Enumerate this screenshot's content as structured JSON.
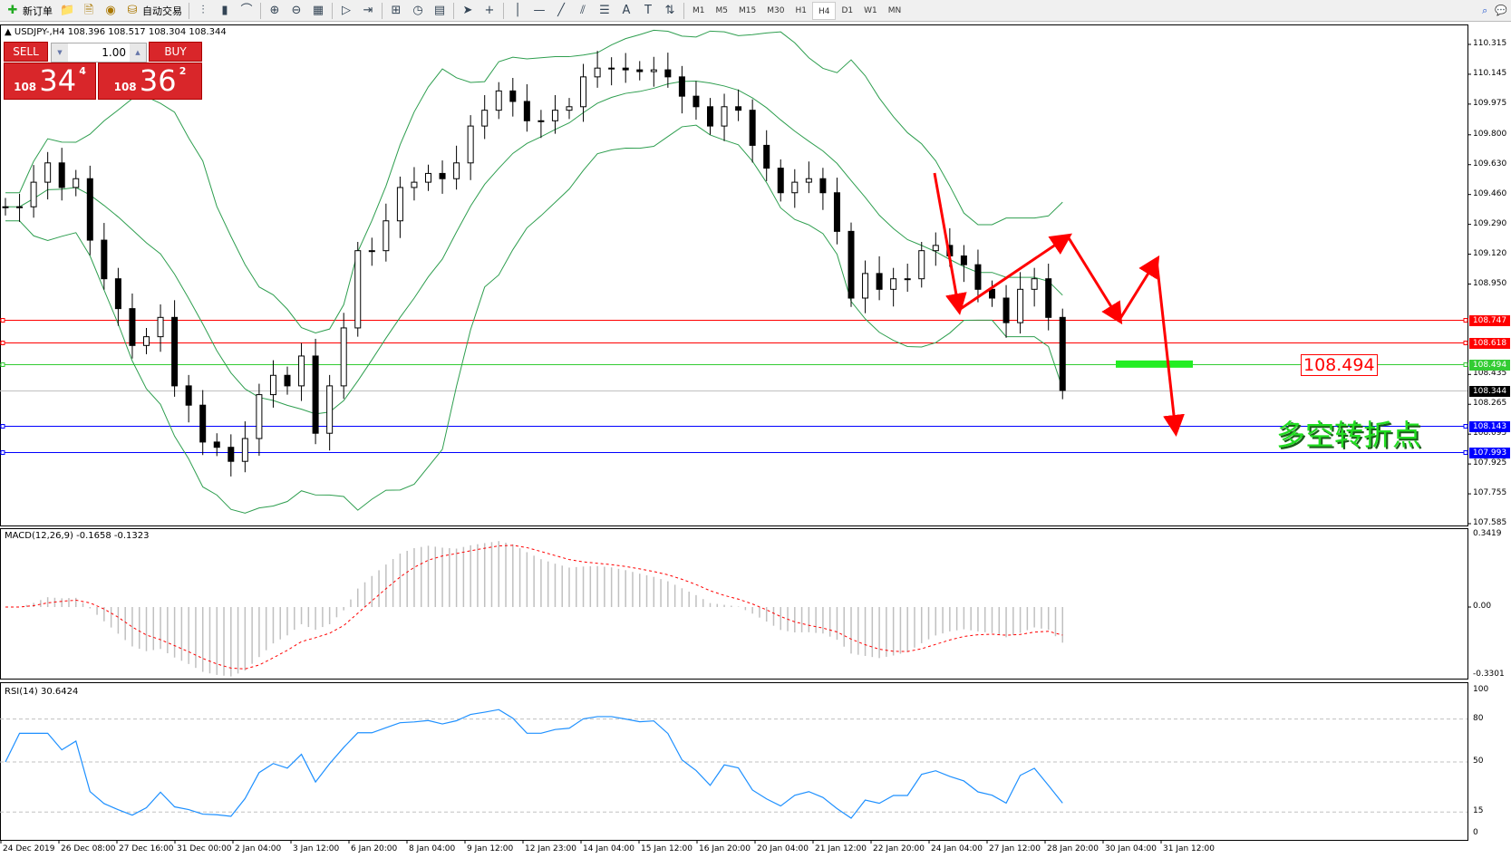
{
  "toolbar": {
    "items": [
      {
        "label": "新订单",
        "icon": "new-order-icon"
      },
      {
        "label": "",
        "icon": "folder-icon"
      },
      {
        "label": "",
        "icon": "history-icon"
      },
      {
        "label": "",
        "icon": "signal-icon"
      },
      {
        "label": "自动交易",
        "icon": "auto-trading-icon"
      }
    ],
    "timeframes": [
      "M1",
      "M5",
      "M15",
      "M30",
      "H1",
      "H4",
      "D1",
      "W1",
      "MN"
    ],
    "active_timeframe": "H4"
  },
  "chart": {
    "header": "USDJPY-,H4  108.396 108.517 108.304 108.344",
    "trade": {
      "sell_label": "SELL",
      "buy_label": "BUY",
      "lot": "1.00",
      "sell_big": "108",
      "sell_main": "34",
      "sell_sup": "4",
      "buy_big": "108",
      "buy_main": "36",
      "buy_sup": "2"
    },
    "price_ticks": [
      "110.315",
      "110.145",
      "109.975",
      "109.800",
      "109.630",
      "109.460",
      "109.290",
      "109.120",
      "108.950",
      "108.435",
      "108.265",
      "108.095",
      "107.925",
      "107.755",
      "107.585"
    ],
    "levels": [
      {
        "value": "108.747",
        "color": "#ff0000"
      },
      {
        "value": "108.618",
        "color": "#ff0000"
      },
      {
        "value": "108.494",
        "color": "#33cc33"
      },
      {
        "value": "108.344",
        "color": "#000000",
        "line": "#c0c0c0"
      },
      {
        "value": "108.143",
        "color": "#0000ff"
      },
      {
        "value": "107.993",
        "color": "#0000ff"
      }
    ],
    "price_label": "108.494",
    "annotation": "多空转折点",
    "closes": [
      109.39,
      109.39,
      109.53,
      109.64,
      109.5,
      109.55,
      109.2,
      108.98,
      108.81,
      108.6,
      108.65,
      108.76,
      108.37,
      108.26,
      108.05,
      108.02,
      107.94,
      108.07,
      108.32,
      108.43,
      108.37,
      108.54,
      108.1,
      108.37,
      108.7,
      109.14,
      109.14,
      109.31,
      109.5,
      109.53,
      109.58,
      109.55,
      109.64,
      109.85,
      109.94,
      110.05,
      109.99,
      109.88,
      109.88,
      109.94,
      109.96,
      110.13,
      110.18,
      110.18,
      110.17,
      110.16,
      110.17,
      110.13,
      110.02,
      109.96,
      109.85,
      109.96,
      109.94,
      109.74,
      109.61,
      109.47,
      109.53,
      109.55,
      109.47,
      109.25,
      108.87,
      109.01,
      108.92,
      108.98,
      108.98,
      109.14,
      109.17,
      109.11,
      109.06,
      108.92,
      108.87,
      108.73,
      108.92,
      108.98,
      108.76,
      108.344
    ],
    "time_labels": [
      "24 Dec 2019",
      "26 Dec 08:00",
      "27 Dec 16:00",
      "31 Dec 00:00",
      "2 Jan 04:00",
      "3 Jan 12:00",
      "6 Jan 20:00",
      "8 Jan 04:00",
      "9 Jan 12:00",
      "12 Jan 23:00",
      "14 Jan 04:00",
      "15 Jan 12:00",
      "16 Jan 20:00",
      "20 Jan 04:00",
      "21 Jan 12:00",
      "22 Jan 20:00",
      "24 Jan 04:00",
      "27 Jan 12:00",
      "28 Jan 20:00",
      "30 Jan 04:00",
      "31 Jan 12:00"
    ]
  },
  "macd": {
    "label": "MACD(12,26,9) -0.1658 -0.1323",
    "ticks": [
      "0.3419",
      "0.00",
      "-0.3301"
    ]
  },
  "rsi": {
    "label": "RSI(14) 30.6424",
    "ticks": [
      "100",
      "80",
      "50",
      "15",
      "0"
    ]
  },
  "colors": {
    "bands": "#2e9e4f",
    "rsi": "#1e90ff",
    "signal": "#ff0000",
    "arrow": "#ff0000"
  }
}
